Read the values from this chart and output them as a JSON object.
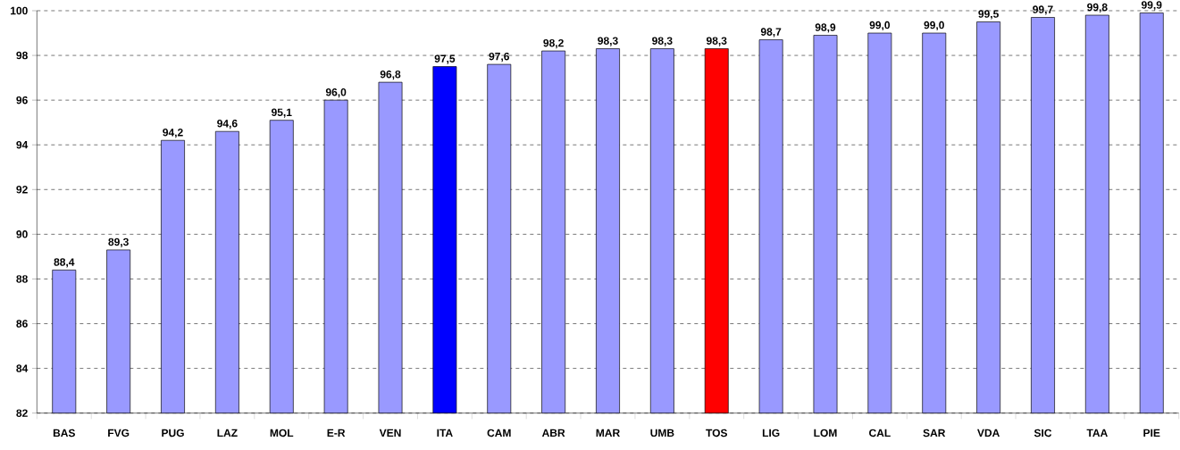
{
  "chart_data": {
    "type": "bar",
    "categories": [
      "BAS",
      "FVG",
      "PUG",
      "LAZ",
      "MOL",
      "E-R",
      "VEN",
      "ITA",
      "CAM",
      "ABR",
      "MAR",
      "UMB",
      "TOS",
      "LIG",
      "LOM",
      "CAL",
      "SAR",
      "VDA",
      "SIC",
      "TAA",
      "PIE"
    ],
    "values": [
      88.4,
      89.3,
      94.2,
      94.6,
      95.1,
      96.0,
      96.8,
      97.5,
      97.6,
      98.2,
      98.3,
      98.3,
      98.3,
      98.7,
      98.9,
      99.0,
      99.0,
      99.5,
      99.7,
      99.8,
      99.9
    ],
    "value_labels": [
      "88,4",
      "89,3",
      "94,2",
      "94,6",
      "95,1",
      "96,0",
      "96,8",
      "97,5",
      "97,6",
      "98,2",
      "98,3",
      "98,3",
      "98,3",
      "98,7",
      "98,9",
      "99,0",
      "99,0",
      "99,5",
      "99,7",
      "99,8",
      "99,9"
    ],
    "colors": [
      "#9999ff",
      "#9999ff",
      "#9999ff",
      "#9999ff",
      "#9999ff",
      "#9999ff",
      "#9999ff",
      "#0000ff",
      "#9999ff",
      "#9999ff",
      "#9999ff",
      "#9999ff",
      "#ff0000",
      "#9999ff",
      "#9999ff",
      "#9999ff",
      "#9999ff",
      "#9999ff",
      "#9999ff",
      "#9999ff",
      "#9999ff"
    ],
    "ylim": [
      82,
      100
    ],
    "yticks": [
      82,
      84,
      86,
      88,
      90,
      92,
      94,
      96,
      98,
      100
    ],
    "grid": "y"
  }
}
